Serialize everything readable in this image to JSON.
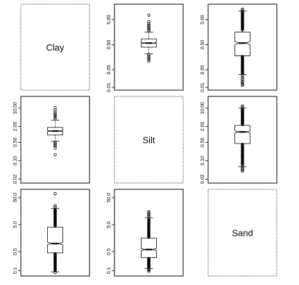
{
  "chart_data": {
    "type": "boxplot-matrix",
    "variables": [
      "Clay",
      "Silt",
      "Sand"
    ],
    "log_scale": true,
    "notched": true,
    "panels": [
      {
        "id": "clay-diag",
        "row": 0,
        "col": 0,
        "diagonal": true,
        "label": "Clay"
      },
      {
        "id": "clay-silt",
        "row": 0,
        "col": 1,
        "diagonal": false,
        "y_ticks": [
          {
            "v": 0.01,
            "t": "0.01"
          },
          {
            "v": 0.05,
            "t": "0.05"
          },
          {
            "v": 0.5,
            "t": "0.50"
          },
          {
            "v": 5,
            "t": "5.00"
          }
        ],
        "ylim": [
          0.01,
          16
        ],
        "box": {
          "whisker_low": 0.22,
          "q1": 0.4,
          "median": 0.58,
          "q3": 0.85,
          "whisker_high": 1.6,
          "notch_low": 0.55,
          "notch_high": 0.61
        },
        "outliers_high": [
          1.8,
          2.0,
          2.3,
          2.6,
          3.0,
          3.5,
          4.2,
          7.5
        ],
        "outliers_low": [
          0.2,
          0.17,
          0.15,
          0.13,
          0.11
        ]
      },
      {
        "id": "clay-sand",
        "row": 0,
        "col": 2,
        "diagonal": false,
        "y_ticks": [
          {
            "v": 0.01,
            "t": "0.01"
          },
          {
            "v": 0.05,
            "t": "0.05"
          },
          {
            "v": 0.5,
            "t": "0.50"
          },
          {
            "v": 5,
            "t": "5.00"
          }
        ],
        "ylim": [
          0.01,
          16
        ],
        "box": {
          "whisker_low": 0.032,
          "q1": 0.18,
          "median": 0.58,
          "q3": 1.6,
          "whisker_high": 11,
          "notch_low": 0.5,
          "notch_high": 0.68
        },
        "outliers_high": [
          12,
          13
        ],
        "outliers_low": [
          0.028,
          0.024,
          0.02,
          0.017,
          0.015,
          0.013
        ],
        "dense_low": [
          0.035,
          0.17
        ],
        "dense_high": [
          2.0,
          10
        ],
        "outliers_extreme_low": [
          0.012
        ]
      },
      {
        "id": "silt-clay",
        "row": 1,
        "col": 0,
        "diagonal": false,
        "y_ticks": [
          {
            "v": 0.02,
            "t": "0.02"
          },
          {
            "v": 0.1,
            "t": "0.10"
          },
          {
            "v": 0.5,
            "t": "0.50"
          },
          {
            "v": 2,
            "t": "2.00"
          },
          {
            "v": 10,
            "t": "10.00"
          }
        ],
        "ylim": [
          0.018,
          22
        ],
        "box": {
          "whisker_low": 0.55,
          "q1": 0.95,
          "median": 1.35,
          "q3": 1.85,
          "whisker_high": 3.5,
          "notch_low": 1.28,
          "notch_high": 1.43
        },
        "outliers_high": [
          4.0,
          4.6,
          5.3,
          6.0,
          7.0,
          8.5,
          10.5
        ],
        "outliers_low": [
          0.5,
          0.45,
          0.4,
          0.36,
          0.3,
          0.17
        ]
      },
      {
        "id": "silt-diag",
        "row": 1,
        "col": 1,
        "diagonal": true,
        "label": "Silt"
      },
      {
        "id": "silt-sand",
        "row": 1,
        "col": 2,
        "diagonal": false,
        "y_ticks": [
          {
            "v": 0.02,
            "t": "0.02"
          },
          {
            "v": 0.1,
            "t": "0.10"
          },
          {
            "v": 0.5,
            "t": "0.50"
          },
          {
            "v": 2,
            "t": "2.00"
          },
          {
            "v": 10,
            "t": "10.00"
          }
        ],
        "ylim": [
          0.018,
          22
        ],
        "box": {
          "whisker_low": 0.06,
          "q1": 0.45,
          "median": 1.25,
          "q3": 2.2,
          "whisker_high": 10,
          "notch_low": 1.13,
          "notch_high": 1.38
        },
        "outliers_high": [
          11,
          12
        ],
        "outliers_low": [
          0.055,
          0.05,
          0.045,
          0.04
        ],
        "dense_low": [
          0.07,
          0.42
        ],
        "dense_high": [
          2.4,
          9
        ]
      },
      {
        "id": "sand-clay",
        "row": 2,
        "col": 0,
        "diagonal": false,
        "y_ticks": [
          {
            "v": 0.1,
            "t": "0.1"
          },
          {
            "v": 0.5,
            "t": "0.5"
          },
          {
            "v": 5,
            "t": "5.0"
          },
          {
            "v": 50,
            "t": "50.0"
          }
        ],
        "ylim": [
          0.08,
          80
        ],
        "box": {
          "whisker_low": 0.09,
          "q1": 0.45,
          "median": 1.0,
          "q3": 4.0,
          "whisker_high": 20,
          "notch_low": 0.9,
          "notch_high": 1.12
        },
        "outliers_high": [
          22,
          25,
          70
        ],
        "outliers_low": [
          0.085
        ],
        "dense_low": [
          0.1,
          0.42
        ],
        "dense_high": [
          4.5,
          18
        ]
      },
      {
        "id": "sand-silt",
        "row": 2,
        "col": 1,
        "diagonal": false,
        "y_ticks": [
          {
            "v": 0.1,
            "t": "0.1"
          },
          {
            "v": 0.5,
            "t": "0.5"
          },
          {
            "v": 5,
            "t": "5.0"
          },
          {
            "v": 50,
            "t": "50.0"
          }
        ],
        "ylim": [
          0.08,
          80
        ],
        "box": {
          "whisker_low": 0.12,
          "q1": 0.3,
          "median": 0.6,
          "q3": 1.6,
          "whisker_high": 9,
          "notch_low": 0.55,
          "notch_high": 0.66
        },
        "outliers_high": [
          10,
          11,
          12,
          13.5,
          15
        ],
        "outliers_low": [
          0.11,
          0.1,
          0.095
        ],
        "dense_low": [
          0.13,
          0.28
        ],
        "dense_high": [
          1.7,
          8
        ]
      },
      {
        "id": "sand-diag",
        "row": 2,
        "col": 2,
        "diagonal": true,
        "label": "Sand"
      }
    ]
  }
}
